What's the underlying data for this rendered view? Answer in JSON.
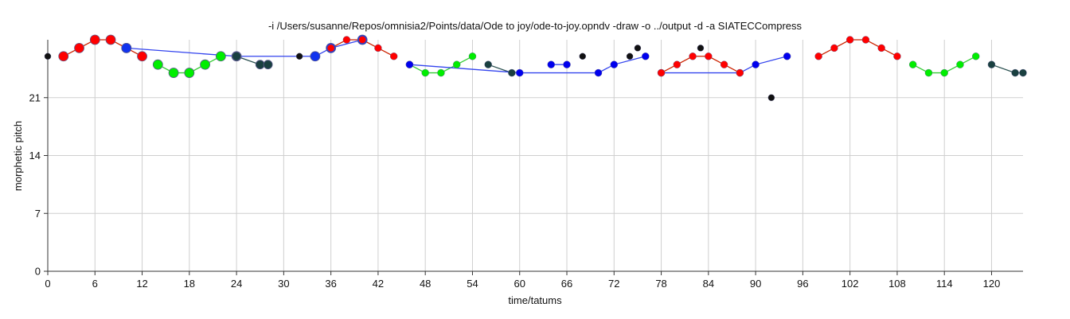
{
  "chart_data": {
    "type": "scatter",
    "title": "-i /Users/susanne/Repos/omnisia2/Points/data/Ode to joy/ode-to-joy.opndv -draw -o ../output -d -a SIATECCompress",
    "xlabel": "time/tatums",
    "ylabel": "morphetic pitch",
    "xlim": [
      0,
      124
    ],
    "ylim": [
      0,
      28
    ],
    "xticks": [
      0,
      6,
      12,
      18,
      24,
      30,
      36,
      42,
      48,
      54,
      60,
      66,
      72,
      78,
      84,
      90,
      96,
      102,
      108,
      114,
      120
    ],
    "yticks": [
      0,
      7,
      14,
      21
    ],
    "grid": true,
    "series": [
      {
        "color": "#ff0000",
        "line": "#cc2200",
        "r": 6,
        "segments": [
          [
            [
              2,
              26
            ],
            [
              4,
              27
            ],
            [
              6,
              28
            ],
            [
              8,
              28
            ],
            [
              10,
              27
            ],
            [
              12,
              26
            ]
          ]
        ]
      },
      {
        "color": "#00ee00",
        "line": "#33cc33",
        "r": 6,
        "segments": [
          [
            [
              14,
              25
            ],
            [
              16,
              24
            ],
            [
              18,
              24
            ],
            [
              20,
              25
            ],
            [
              22,
              26
            ]
          ]
        ]
      },
      {
        "color": "#1133ee",
        "line": "#3344ee",
        "r": 6,
        "segments": [
          [
            [
              10,
              27
            ],
            [
              24,
              26
            ],
            [
              34,
              26
            ],
            [
              36,
              27
            ],
            [
              40,
              28
            ]
          ]
        ]
      },
      {
        "color": "#1a4040",
        "line": "#2a5050",
        "r": 5.5,
        "segments": [
          [
            [
              24,
              26
            ],
            [
              27,
              25
            ],
            [
              28,
              25
            ]
          ]
        ]
      },
      {
        "color": "#ff0000",
        "line": "#cc2200",
        "r": 4.5,
        "segments": [
          [
            [
              36,
              27
            ],
            [
              38,
              28
            ],
            [
              40,
              28
            ],
            [
              42,
              27
            ],
            [
              44,
              26
            ]
          ]
        ]
      },
      {
        "color": "#00ee00",
        "line": "#33cc33",
        "r": 4.5,
        "segments": [
          [
            [
              46,
              25
            ],
            [
              48,
              24
            ],
            [
              50,
              24
            ],
            [
              52,
              25
            ],
            [
              54,
              26
            ]
          ]
        ]
      },
      {
        "color": "#1a4040",
        "line": "#2a5050",
        "r": 4.5,
        "segments": [
          [
            [
              56,
              25
            ],
            [
              59,
              24
            ]
          ]
        ]
      },
      {
        "color": "#0000ee",
        "line": "#3344ee",
        "r": 4.5,
        "segments": [
          [
            [
              46,
              25
            ],
            [
              60,
              24
            ],
            [
              70,
              24
            ],
            [
              72,
              25
            ],
            [
              76,
              26
            ]
          ],
          [
            [
              64,
              25
            ],
            [
              66,
              25
            ]
          ],
          [
            [
              78,
              24
            ],
            [
              88,
              24
            ],
            [
              90,
              25
            ],
            [
              94,
              26
            ]
          ]
        ]
      },
      {
        "color": "#ff0000",
        "line": "#cc2200",
        "r": 4.5,
        "segments": [
          [
            [
              78,
              24
            ],
            [
              80,
              25
            ],
            [
              82,
              26
            ],
            [
              84,
              26
            ],
            [
              86,
              25
            ],
            [
              88,
              24
            ]
          ]
        ]
      },
      {
        "color": "#111111",
        "line": "none",
        "r": 4,
        "segments": [
          [
            [
              0,
              26
            ],
            [
              32,
              26
            ],
            [
              68,
              26
            ],
            [
              74,
              26
            ],
            [
              75,
              27
            ],
            [
              83,
              27
            ],
            [
              92,
              21
            ]
          ]
        ]
      },
      {
        "color": "#ff0000",
        "line": "#cc2200",
        "r": 4.5,
        "segments": [
          [
            [
              98,
              26
            ],
            [
              100,
              27
            ],
            [
              102,
              28
            ],
            [
              104,
              28
            ],
            [
              106,
              27
            ],
            [
              108,
              26
            ]
          ]
        ]
      },
      {
        "color": "#00ee00",
        "line": "#33cc33",
        "r": 4.5,
        "segments": [
          [
            [
              110,
              25
            ],
            [
              112,
              24
            ],
            [
              114,
              24
            ],
            [
              116,
              25
            ],
            [
              118,
              26
            ]
          ]
        ]
      },
      {
        "color": "#1a4040",
        "line": "#2a5050",
        "r": 4.5,
        "segments": [
          [
            [
              120,
              25
            ],
            [
              123,
              24
            ],
            [
              124,
              24
            ]
          ]
        ]
      }
    ]
  }
}
